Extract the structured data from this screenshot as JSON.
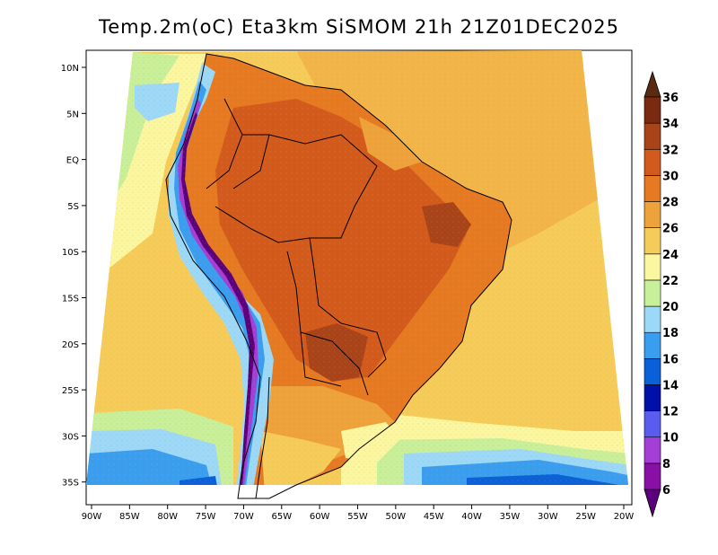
{
  "title": "Temp.2m(oC) Eta3km SiSMOM 21h 21Z01DEC2025",
  "map": {
    "region": "South America",
    "lon_range": [
      -90,
      -20
    ],
    "lat_range": [
      -38,
      12
    ],
    "lon_ticks": [
      {
        "value": -90,
        "label": "90W"
      },
      {
        "value": -85,
        "label": "85W"
      },
      {
        "value": -80,
        "label": "80W"
      },
      {
        "value": -75,
        "label": "75W"
      },
      {
        "value": -70,
        "label": "70W"
      },
      {
        "value": -65,
        "label": "65W"
      },
      {
        "value": -60,
        "label": "60W"
      },
      {
        "value": -55,
        "label": "55W"
      },
      {
        "value": -50,
        "label": "50W"
      },
      {
        "value": -45,
        "label": "45W"
      },
      {
        "value": -40,
        "label": "40W"
      },
      {
        "value": -35,
        "label": "35W"
      },
      {
        "value": -30,
        "label": "30W"
      },
      {
        "value": -25,
        "label": "25W"
      },
      {
        "value": -20,
        "label": "20W"
      }
    ],
    "lat_ticks": [
      {
        "value": 10,
        "label": "10N"
      },
      {
        "value": 5,
        "label": "5N"
      },
      {
        "value": 0,
        "label": "EQ"
      },
      {
        "value": -5,
        "label": "5S"
      },
      {
        "value": -10,
        "label": "10S"
      },
      {
        "value": -15,
        "label": "15S"
      },
      {
        "value": -20,
        "label": "20S"
      },
      {
        "value": -25,
        "label": "25S"
      },
      {
        "value": -30,
        "label": "30S"
      },
      {
        "value": -35,
        "label": "35S"
      }
    ]
  },
  "colorbar": {
    "levels": [
      {
        "label": "6",
        "color": "#5a007a"
      },
      {
        "label": "8",
        "color": "#8a0fa6"
      },
      {
        "label": "10",
        "color": "#a33ed6"
      },
      {
        "label": "12",
        "color": "#5a5cf0"
      },
      {
        "label": "14",
        "color": "#0010a8"
      },
      {
        "label": "16",
        "color": "#0a60d8"
      },
      {
        "label": "18",
        "color": "#3a9ef0"
      },
      {
        "label": "20",
        "color": "#9cd8f8"
      },
      {
        "label": "22",
        "color": "#c8f09a"
      },
      {
        "label": "24",
        "color": "#fbf7a0"
      },
      {
        "label": "26",
        "color": "#f5cc5a"
      },
      {
        "label": "28",
        "color": "#eea23c"
      },
      {
        "label": "30",
        "color": "#e57a22"
      },
      {
        "label": "32",
        "color": "#d25a1c"
      },
      {
        "label": "34",
        "color": "#a8431a"
      },
      {
        "label": "36",
        "color": "#7a2a10"
      }
    ],
    "top_color": "#5a2a12",
    "bottom_color": "#5a007a"
  }
}
